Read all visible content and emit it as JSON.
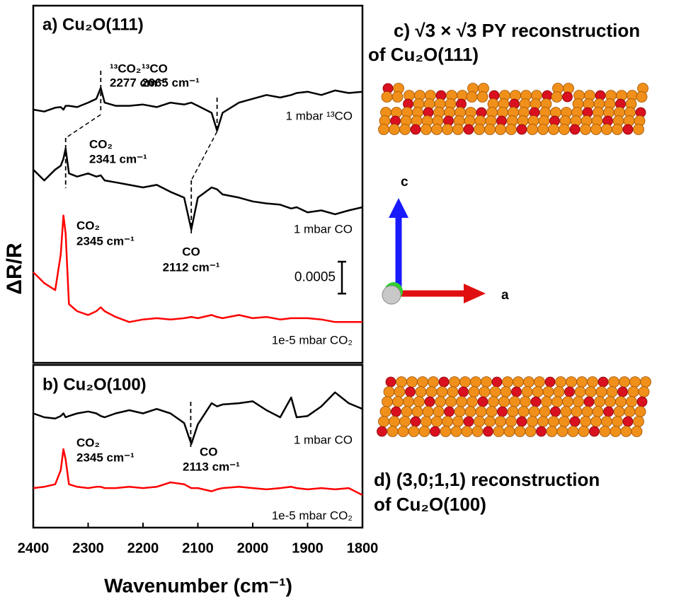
{
  "chart_data": [
    {
      "type": "line",
      "title": "a) Cu₂O(111)",
      "x": [
        2400,
        2380,
        2360,
        2350,
        2345,
        2341,
        2335,
        2320,
        2300,
        2285,
        2277,
        2270,
        2250,
        2225,
        2200,
        2175,
        2150,
        2125,
        2112,
        2100,
        2075,
        2065,
        2055,
        2025,
        2000,
        1975,
        1950,
        1930,
        1920,
        1900,
        1875,
        1850,
        1825,
        1800
      ],
      "xlim": [
        2400,
        1800
      ],
      "ylim": [
        0,
        0.0056
      ],
      "series": [
        {
          "name": "1 mbar ¹³CO",
          "color": "#000000",
          "values": [
            0.00397,
            0.00394,
            0.004,
            0.00401,
            0.00397,
            0.00403,
            0.00403,
            0.00401,
            0.00408,
            0.00414,
            0.00431,
            0.00408,
            0.00403,
            0.00403,
            0.00405,
            0.00401,
            0.00408,
            0.00405,
            0.00408,
            0.00403,
            0.00392,
            0.00364,
            0.00392,
            0.00408,
            0.00414,
            0.0042,
            0.00416,
            0.0042,
            0.00423,
            0.00425,
            0.0042,
            0.00427,
            0.00423,
            0.00425
          ]
        },
        {
          "name": "1 mbar CO",
          "color": "#000000",
          "values": [
            0.00303,
            0.00286,
            0.00303,
            0.00309,
            0.0032,
            0.00336,
            0.00297,
            0.00292,
            0.00297,
            0.00292,
            0.00294,
            0.00286,
            0.00283,
            0.00279,
            0.00275,
            0.00279,
            0.00268,
            0.00259,
            0.00209,
            0.00259,
            0.00275,
            0.00272,
            0.00264,
            0.00259,
            0.00253,
            0.0025,
            0.00248,
            0.00242,
            0.00244,
            0.00236,
            0.00239,
            0.00233,
            0.00239,
            0.00244
          ]
        },
        {
          "name": "1e-5 mbar CO₂",
          "color": "#ff0000",
          "values": [
            0.00142,
            0.00125,
            0.00114,
            0.0017,
            0.00231,
            0.00203,
            0.00092,
            0.00081,
            0.00075,
            0.00081,
            0.00087,
            0.00081,
            0.00072,
            0.00064,
            0.00068,
            0.0007,
            0.00068,
            0.0007,
            0.00072,
            0.0007,
            0.00075,
            0.00072,
            0.0007,
            0.00075,
            0.0007,
            0.00072,
            0.00068,
            0.0007,
            0.0007,
            0.0007,
            0.00068,
            0.00064,
            0.00064,
            0.00064
          ]
        }
      ],
      "annotations": [
        {
          "label": "¹³CO₂",
          "text": "2277 cm⁻¹",
          "x": 2277
        },
        {
          "label": "¹³CO",
          "text": "2065 cm⁻¹",
          "x": 2065
        },
        {
          "label": "CO₂",
          "text": "2341 cm⁻¹",
          "x": 2341
        },
        {
          "label": "CO",
          "text": "2112 cm⁻¹",
          "x": 2112
        },
        {
          "label": "CO₂",
          "text": "2345 cm⁻¹",
          "x": 2345
        }
      ],
      "scale_bar": 0.0005
    },
    {
      "type": "line",
      "title": "b) Cu₂O(100)",
      "x": [
        2400,
        2380,
        2360,
        2350,
        2345,
        2341,
        2335,
        2320,
        2300,
        2285,
        2277,
        2270,
        2250,
        2225,
        2200,
        2175,
        2150,
        2125,
        2112,
        2100,
        2075,
        2065,
        2055,
        2025,
        2000,
        1975,
        1950,
        1930,
        1920,
        1900,
        1875,
        1850,
        1825,
        1800
      ],
      "xlim": [
        2400,
        1800
      ],
      "ylim": [
        0,
        0.00255
      ],
      "xticks": [
        2400,
        2300,
        2200,
        2100,
        2000,
        1900,
        1800
      ],
      "xlabel": "Wavenumber (cm⁻¹)",
      "series": [
        {
          "name": "1 mbar CO",
          "color": "#000000",
          "values": [
            0.00179,
            0.00173,
            0.00171,
            0.00175,
            0.00179,
            0.00173,
            0.00175,
            0.00179,
            0.00182,
            0.00179,
            0.00175,
            0.00173,
            0.00179,
            0.00184,
            0.00179,
            0.00186,
            0.00179,
            0.00164,
            0.00131,
            0.00162,
            0.00195,
            0.0019,
            0.00193,
            0.00195,
            0.00198,
            0.00184,
            0.00173,
            0.00204,
            0.00173,
            0.00175,
            0.0019,
            0.00212,
            0.00195,
            0.00186
          ]
        },
        {
          "name": "1e-5 mbar CO₂",
          "color": "#ff0000",
          "values": [
            0.00062,
            0.00064,
            0.00068,
            0.0009,
            0.00123,
            0.00107,
            0.00068,
            0.00064,
            0.00062,
            0.00064,
            0.00064,
            0.00062,
            0.00062,
            0.00064,
            0.00062,
            0.00064,
            0.00071,
            0.00068,
            0.00062,
            0.00062,
            0.00057,
            0.0006,
            0.00062,
            0.00064,
            0.00062,
            0.0006,
            0.00062,
            0.00064,
            0.00062,
            0.0006,
            0.00062,
            0.0006,
            0.00062,
            0.00051
          ]
        }
      ],
      "annotations": [
        {
          "label": "CO",
          "text": "2113 cm⁻¹",
          "x": 2113
        },
        {
          "label": "CO₂",
          "text": "2345 cm⁻¹",
          "x": 2345
        }
      ]
    }
  ],
  "ylabel": "ΔR/R",
  "structures": [
    {
      "title": "c) √3 × √3 PY reconstruction",
      "subtitle": "of Cu₂O(111)"
    },
    {
      "title": "d) (3,0;1,1) reconstruction",
      "subtitle": "of Cu₂O(100)"
    }
  ],
  "axes_triad": {
    "vertical": "c",
    "horizontal": "a"
  }
}
